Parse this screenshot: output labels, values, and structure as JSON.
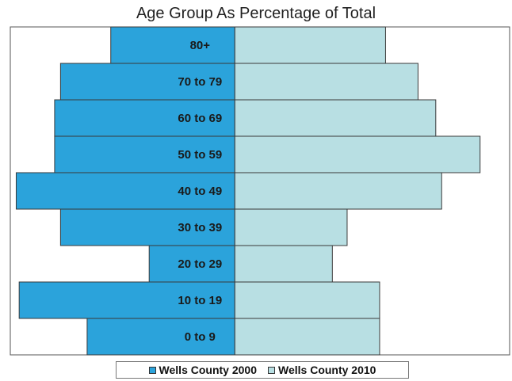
{
  "chart_data": {
    "type": "bar",
    "orientation": "horizontal-butterfly",
    "title": "Age Group As Percentage of Total",
    "categories": [
      "80+",
      "70 to 79",
      "60 to 69",
      "50 to 59",
      "40 to 49",
      "30 to 39",
      "20 to 29",
      "10 to 19",
      "0 to 9"
    ],
    "series": [
      {
        "name": "Wells County 2000",
        "color": "#2BA3DB",
        "values": [
          4.2,
          5.9,
          6.1,
          6.1,
          7.4,
          5.9,
          2.9,
          7.3,
          5.0
        ]
      },
      {
        "name": "Wells County 2010",
        "color": "#B8DFE3",
        "values": [
          5.1,
          6.2,
          6.8,
          8.3,
          7.0,
          3.8,
          3.3,
          4.9,
          4.9
        ]
      }
    ],
    "xlim": [
      -7.6,
      9.3
    ],
    "legend_position": "bottom"
  }
}
